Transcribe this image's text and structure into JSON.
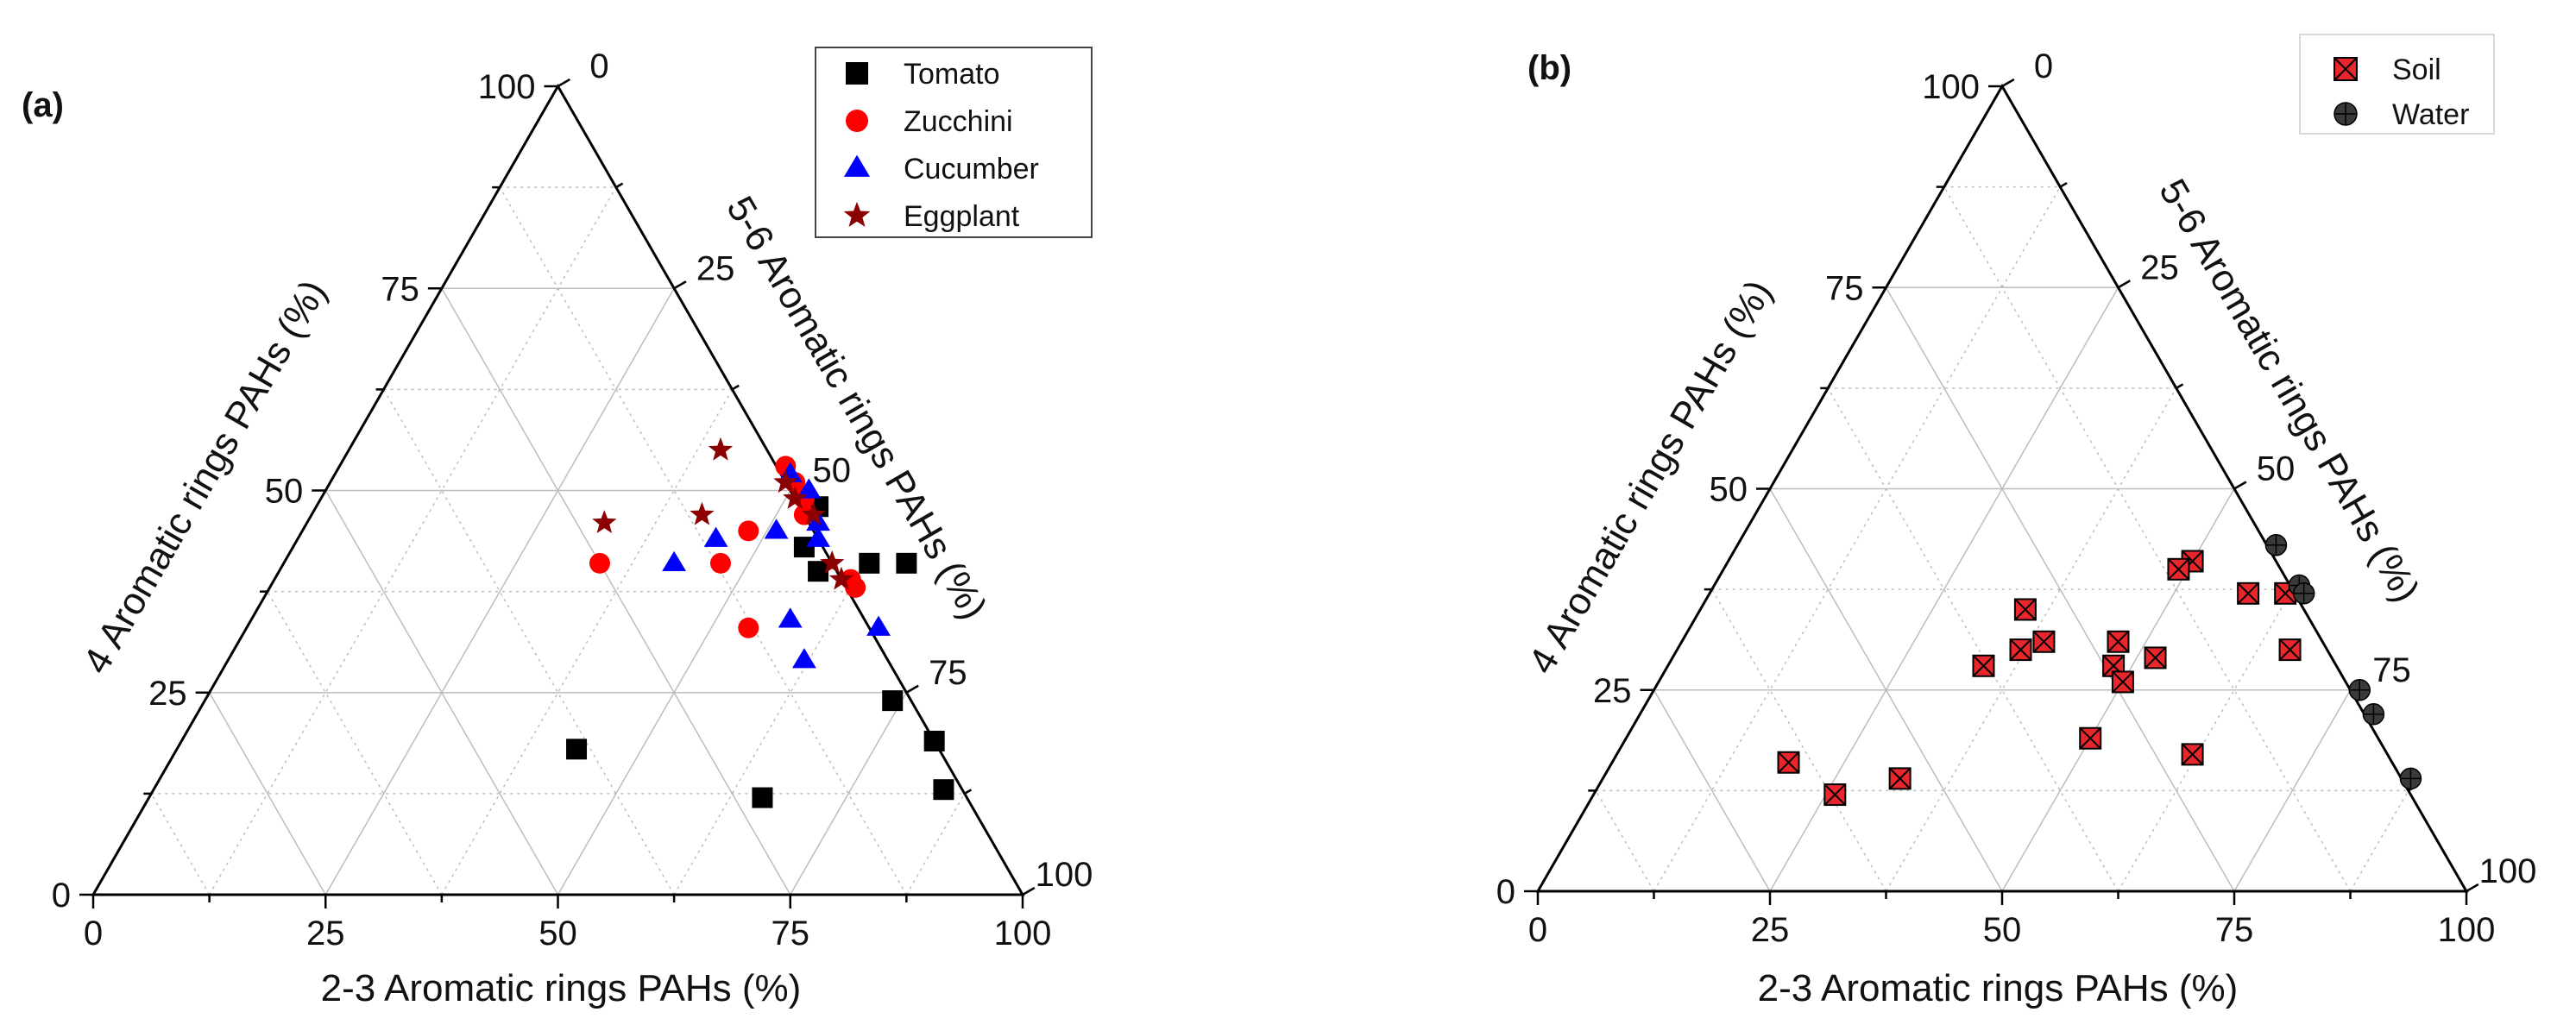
{
  "chart_data": [
    {
      "type": "ternary-scatter",
      "panel_label": "(a)",
      "axes": {
        "bottom": {
          "label": "2-3 Aromatic rings PAHs (%)",
          "ticks": [
            "0",
            "25",
            "50",
            "75",
            "100"
          ]
        },
        "left": {
          "label": "4 Aromatic rings PAHs (%)",
          "ticks": [
            "0",
            "25",
            "50",
            "75",
            "100"
          ]
        },
        "right": {
          "label": "5-6 Aromatic rings PAHs (%)",
          "ticks": [
            "0",
            "25",
            "50",
            "75",
            "100"
          ]
        },
        "range": [
          0,
          100
        ],
        "grid": true
      },
      "legend": {
        "position": "top-right"
      },
      "series": [
        {
          "name": "Tomato",
          "marker": "square",
          "color": "#000000",
          "points": [
            [
              43,
              18,
              39
            ],
            [
              55,
              43,
              2
            ],
            [
              54,
              48,
              -2
            ],
            [
              58,
              40,
              2
            ],
            [
              63,
              41,
              -4
            ],
            [
              67,
              41,
              -8
            ],
            [
              74,
              24,
              2
            ],
            [
              81,
              19,
              0
            ],
            [
              85,
              13,
              2
            ],
            [
              66,
              12,
              22
            ]
          ]
        },
        {
          "name": "Zucchini",
          "marker": "circle",
          "color": "#ff0000",
          "points": [
            [
              34,
              41,
              25
            ],
            [
              47,
              41,
              12
            ],
            [
              48,
              45,
              7
            ],
            [
              54,
              33,
              13
            ],
            [
              48,
              53,
              -1
            ],
            [
              50,
              51,
              -1
            ],
            [
              52,
              49,
              -1
            ],
            [
              53,
              47,
              0
            ],
            [
              62,
              39,
              -1
            ],
            [
              63,
              38,
              -1
            ]
          ]
        },
        {
          "name": "Cucumber",
          "marker": "triangle",
          "color": "#0000ff",
          "points": [
            [
              42,
              41,
              17
            ],
            [
              45,
              44,
              11
            ],
            [
              51,
              45,
              4
            ],
            [
              58,
              34,
              8
            ],
            [
              62,
              29,
              9
            ],
            [
              68,
              33,
              -1
            ],
            [
              49,
              52,
              -1
            ],
            [
              52,
              50,
              -2
            ],
            [
              55,
              46,
              -1
            ],
            [
              56,
              44,
              0
            ]
          ]
        },
        {
          "name": "Eggplant",
          "marker": "star",
          "color": "#8b0000",
          "points": [
            [
              32,
              46,
              22
            ],
            [
              42,
              47,
              11
            ],
            [
              40,
              55,
              5
            ],
            [
              49,
              51,
              0
            ],
            [
              51,
              49,
              0
            ],
            [
              54,
              47,
              -1
            ],
            [
              59,
              41,
              0
            ],
            [
              61,
              39,
              0
            ]
          ]
        }
      ]
    },
    {
      "type": "ternary-scatter",
      "panel_label": "(b)",
      "axes": {
        "bottom": {
          "label": "2-3 Aromatic rings PAHs (%)",
          "ticks": [
            "0",
            "25",
            "50",
            "75",
            "100"
          ]
        },
        "left": {
          "label": "4 Aromatic rings PAHs (%)",
          "ticks": [
            "0",
            "25",
            "50",
            "75",
            "100"
          ]
        },
        "right": {
          "label": "5-6 Aromatic rings PAHs (%)",
          "ticks": [
            "0",
            "25",
            "50",
            "75",
            "100"
          ]
        },
        "range": [
          0,
          100
        ],
        "grid": true
      },
      "legend": {
        "position": "top-right"
      },
      "series": [
        {
          "name": "Soil",
          "marker": "square-x",
          "color": "#e8262b",
          "points": [
            [
              19,
              16,
              65
            ],
            [
              26,
              12,
              62
            ],
            [
              32,
              14,
              54
            ],
            [
              34,
              28,
              38
            ],
            [
              35,
              35,
              30
            ],
            [
              37,
              30,
              33
            ],
            [
              39,
              31,
              30
            ],
            [
              47,
              31,
              22
            ],
            [
              48,
              28,
              24
            ],
            [
              50,
              26,
              24
            ],
            [
              52,
              29,
              19
            ],
            [
              50,
              19,
              31
            ],
            [
              62,
              17,
              21
            ],
            [
              50,
              41,
              9
            ],
            [
              49,
              40,
              11
            ],
            [
              58,
              37,
              5
            ],
            [
              62,
              37,
              1
            ],
            [
              66,
              30,
              4
            ]
          ]
        },
        {
          "name": "Water",
          "marker": "circle",
          "color": "#3a3a3a",
          "points": [
            [
              58,
              43,
              -1
            ],
            [
              63,
              38,
              -1
            ],
            [
              64,
              37,
              -1
            ],
            [
              76,
              25,
              -1
            ],
            [
              79,
              22,
              -1
            ],
            [
              87,
              14,
              -1
            ]
          ]
        }
      ]
    }
  ]
}
